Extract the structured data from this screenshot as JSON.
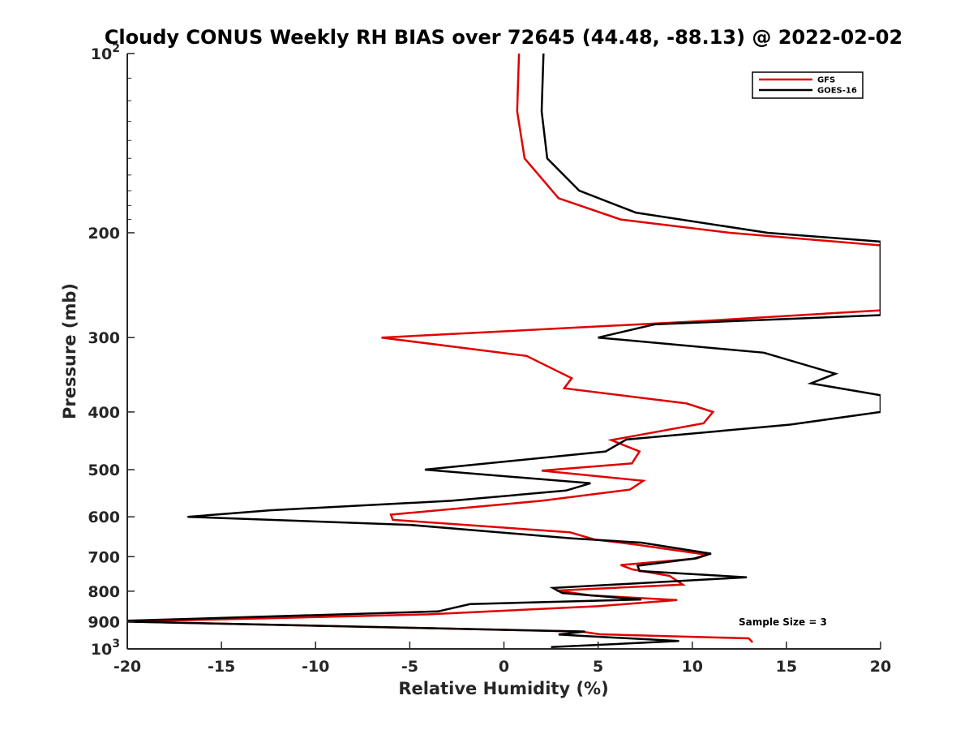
{
  "chart_data": {
    "type": "line",
    "title": "Cloudy CONUS Weekly RH BIAS over 72645 (44.48, -88.13) @ 2022-02-02",
    "xlabel": "Relative Humidity (%)",
    "ylabel": "Pressure (mb)",
    "xlim": [
      -20,
      20
    ],
    "ylim": [
      100,
      1000
    ],
    "y_scale": "log",
    "y_reversed": true,
    "grid": false,
    "legend_position": "top-right",
    "x_ticks": [
      -20,
      -15,
      -10,
      -5,
      0,
      5,
      10,
      15,
      20
    ],
    "x_tick_labels": [
      "-20",
      "-15",
      "-10",
      "-5",
      "0",
      "5",
      "10",
      "15",
      "20"
    ],
    "y_ticks": [
      {
        "value": 100,
        "base": "10",
        "exp": "2"
      },
      {
        "value": 200,
        "label": "200"
      },
      {
        "value": 300,
        "label": "300"
      },
      {
        "value": 400,
        "label": "400"
      },
      {
        "value": 500,
        "label": "500"
      },
      {
        "value": 600,
        "label": "600"
      },
      {
        "value": 700,
        "label": "700"
      },
      {
        "value": 800,
        "label": "800"
      },
      {
        "value": 900,
        "label": "900"
      },
      {
        "value": 1000,
        "base": "10",
        "exp": "3"
      }
    ],
    "annotation": "Sample Size = 3",
    "series": [
      {
        "name": "GFS",
        "color": "#e00000",
        "points": [
          [
            0.8,
            100
          ],
          [
            0.7,
            125
          ],
          [
            1.1,
            150
          ],
          [
            2.9,
            175
          ],
          [
            6.2,
            190
          ],
          [
            12.0,
            200
          ],
          [
            20.0,
            210
          ],
          [
            20.0,
            270
          ],
          [
            10.0,
            282
          ],
          [
            -6.5,
            300
          ],
          [
            1.2,
            322
          ],
          [
            3.6,
            351
          ],
          [
            3.2,
            365
          ],
          [
            9.7,
            387
          ],
          [
            11.1,
            400
          ],
          [
            10.6,
            418
          ],
          [
            5.7,
            446
          ],
          [
            7.2,
            466
          ],
          [
            6.8,
            488
          ],
          [
            2.0,
            502
          ],
          [
            7.4,
            522
          ],
          [
            6.7,
            540
          ],
          [
            2.0,
            564
          ],
          [
            -6.0,
            595
          ],
          [
            -5.9,
            607
          ],
          [
            3.5,
            637
          ],
          [
            4.8,
            655
          ],
          [
            7.0,
            668
          ],
          [
            10.8,
            695
          ],
          [
            10.2,
            705
          ],
          [
            6.2,
            723
          ],
          [
            6.8,
            735
          ],
          [
            8.8,
            754
          ],
          [
            9.5,
            780
          ],
          [
            2.8,
            798
          ],
          [
            4.6,
            813
          ],
          [
            9.2,
            828
          ],
          [
            5.0,
            848
          ],
          [
            -4.0,
            875
          ],
          [
            -20.0,
            900
          ],
          [
            4.1,
            935
          ],
          [
            5.1,
            945
          ],
          [
            13.0,
            960
          ],
          [
            13.2,
            975
          ]
        ]
      },
      {
        "name": "GOES-16",
        "color": "#000000",
        "points": [
          [
            2.1,
            100
          ],
          [
            2.0,
            125
          ],
          [
            2.3,
            150
          ],
          [
            4.0,
            170
          ],
          [
            7.0,
            185
          ],
          [
            14.0,
            200
          ],
          [
            20.0,
            207
          ],
          [
            20.0,
            275
          ],
          [
            8.0,
            285
          ],
          [
            5.0,
            300
          ],
          [
            13.8,
            318
          ],
          [
            17.6,
            345
          ],
          [
            16.3,
            358
          ],
          [
            20.0,
            375
          ],
          [
            20.0,
            400
          ],
          [
            15.2,
            420
          ],
          [
            6.5,
            445
          ],
          [
            5.4,
            466
          ],
          [
            -4.2,
            500
          ],
          [
            4.6,
            527
          ],
          [
            3.3,
            542
          ],
          [
            -2.8,
            564
          ],
          [
            -12.4,
            585
          ],
          [
            -16.8,
            600
          ],
          [
            -5.0,
            619
          ],
          [
            3.6,
            652
          ],
          [
            7.3,
            663
          ],
          [
            11.0,
            692
          ],
          [
            10.1,
            705
          ],
          [
            7.1,
            725
          ],
          [
            7.2,
            740
          ],
          [
            12.9,
            758
          ],
          [
            2.6,
            790
          ],
          [
            3.1,
            806
          ],
          [
            7.3,
            826
          ],
          [
            -1.8,
            841
          ],
          [
            -3.5,
            865
          ],
          [
            -20.0,
            897
          ],
          [
            -20.0,
            900
          ],
          [
            4.3,
            935
          ],
          [
            2.9,
            946
          ],
          [
            3.9,
            950
          ],
          [
            9.3,
            970
          ],
          [
            2.5,
            993
          ]
        ]
      }
    ]
  }
}
